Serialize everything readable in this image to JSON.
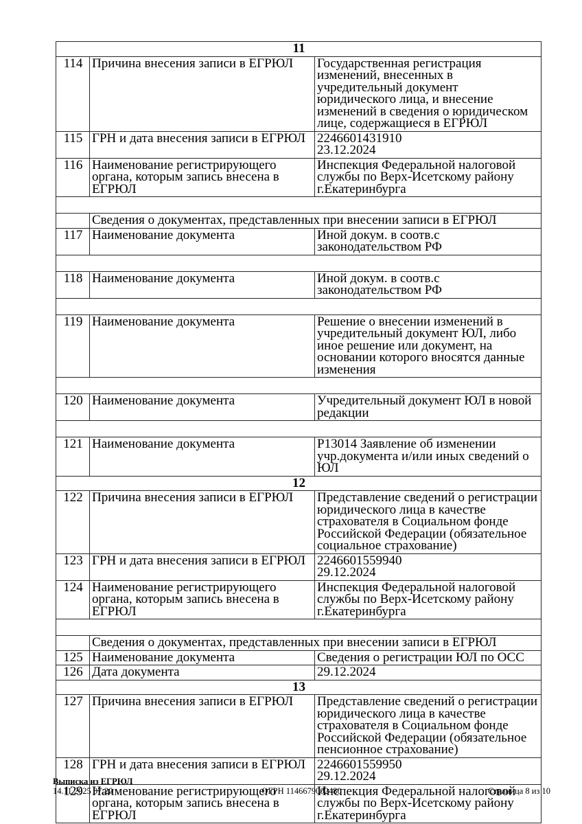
{
  "table": {
    "rows": [
      {
        "type": "section",
        "label": "11"
      },
      {
        "type": "record",
        "num": "114",
        "label": "Причина внесения записи в ЕГРЮЛ",
        "value": "Государственная регистрация изменений, внесенных в учредительный документ юридического лица, и внесение изменений в сведения о юридическом лице, содержащиеся в ЕГРЮЛ"
      },
      {
        "type": "record",
        "num": "115",
        "label": "ГРН и дата внесения записи в ЕГРЮЛ",
        "value": "2246601431910\n23.12.2024"
      },
      {
        "type": "record",
        "num": "116",
        "label": "Наименование регистрирующего органа, которым запись внесена в ЕГРЮЛ",
        "value": "Инспекция Федеральной налоговой службы по Верх-Исетскому району г.Екатеринбурга"
      },
      {
        "type": "spacer"
      },
      {
        "type": "subheader",
        "label": "Сведения о документах, представленных при внесении записи в ЕГРЮЛ"
      },
      {
        "type": "record",
        "num": "117",
        "label": "Наименование документа",
        "value": "Иной докум. в соотв.с законодательством РФ"
      },
      {
        "type": "spacer"
      },
      {
        "type": "record",
        "num": "118",
        "label": "Наименование документа",
        "value": "Иной докум. в соотв.с законодательством РФ"
      },
      {
        "type": "spacer"
      },
      {
        "type": "record",
        "num": "119",
        "label": "Наименование документа",
        "value": "Решение о внесении изменений в учредительный документ ЮЛ, либо иное решение или документ, на основании которого вносятся данные изменения"
      },
      {
        "type": "spacer"
      },
      {
        "type": "record",
        "num": "120",
        "label": "Наименование документа",
        "value": "Учредительный документ ЮЛ в новой редакции"
      },
      {
        "type": "spacer"
      },
      {
        "type": "record",
        "num": "121",
        "label": "Наименование документа",
        "value": "Р13014 Заявление об изменении учр.документа и/или иных сведений о ЮЛ"
      },
      {
        "type": "section",
        "label": "12"
      },
      {
        "type": "record",
        "num": "122",
        "label": "Причина внесения записи в ЕГРЮЛ",
        "value": "Представление сведений о регистрации юридического лица в качестве страхователя в Социальном фонде Российской Федерации (обязательное социальное страхование)"
      },
      {
        "type": "record",
        "num": "123",
        "label": "ГРН и дата внесения записи в ЕГРЮЛ",
        "value": "2246601559940\n29.12.2024"
      },
      {
        "type": "record",
        "num": "124",
        "label": "Наименование регистрирующего органа, которым запись внесена в ЕГРЮЛ",
        "value": "Инспекция Федеральной налоговой службы по Верх-Исетскому району г.Екатеринбурга"
      },
      {
        "type": "spacer"
      },
      {
        "type": "subheader",
        "label": "Сведения о документах, представленных при внесении записи в ЕГРЮЛ"
      },
      {
        "type": "record",
        "num": "125",
        "label": "Наименование документа",
        "value": "Сведения о регистрации ЮЛ по ОСС"
      },
      {
        "type": "record",
        "num": "126",
        "label": "Дата документа",
        "value": "29.12.2024"
      },
      {
        "type": "section",
        "label": "13"
      },
      {
        "type": "record",
        "num": "127",
        "label": "Причина внесения записи в ЕГРЮЛ",
        "value": "Представление сведений о регистрации юридического лица в качестве страхователя в Социальном фонде Российской Федерации (обязательное пенсионное страхование)"
      },
      {
        "type": "record",
        "num": "128",
        "label": "ГРН и дата внесения записи в ЕГРЮЛ",
        "value": "2246601559950\n29.12.2024"
      },
      {
        "type": "record",
        "num": "129",
        "label": "Наименование регистрирующего органа, которым запись внесена в ЕГРЮЛ",
        "value": "Инспекция Федеральной налоговой службы по Верх-Исетскому району г.Екатеринбурга"
      }
    ]
  },
  "footer": {
    "doc_title": "Выписка из ЕГРЮЛ",
    "datetime": "14.11.2025 07:20",
    "ogrn": "ОГРН 1146679002480",
    "page_info": "Страница 8 из 10"
  }
}
